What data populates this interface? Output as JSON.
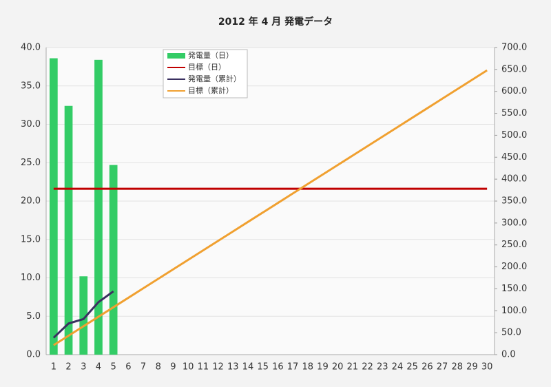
{
  "chart_data": {
    "type": "bar",
    "title": "2012 年 4 月 発電データ",
    "categories": [
      1,
      2,
      3,
      4,
      5,
      6,
      7,
      8,
      9,
      10,
      11,
      12,
      13,
      14,
      15,
      16,
      17,
      18,
      19,
      20,
      21,
      22,
      23,
      24,
      25,
      26,
      27,
      28,
      29,
      30
    ],
    "ylim": [
      0,
      40
    ],
    "yticks": [
      {
        "value": 0,
        "label": "0.0"
      },
      {
        "value": 5,
        "label": "5.0"
      },
      {
        "value": 10,
        "label": "10.0"
      },
      {
        "value": 15,
        "label": "15.0"
      },
      {
        "value": 20,
        "label": "20.0"
      },
      {
        "value": 25,
        "label": "25.0"
      },
      {
        "value": 30,
        "label": "30.0"
      },
      {
        "value": 35,
        "label": "35.0"
      },
      {
        "value": 40,
        "label": "40.0"
      }
    ],
    "y2lim": [
      0,
      700
    ],
    "y2ticks": [
      {
        "value": 0,
        "label": "0.0"
      },
      {
        "value": 50,
        "label": "50.0"
      },
      {
        "value": 100,
        "label": "100.0"
      },
      {
        "value": 150,
        "label": "150.0"
      },
      {
        "value": 200,
        "label": "200.0"
      },
      {
        "value": 250,
        "label": "250.0"
      },
      {
        "value": 300,
        "label": "300.0"
      },
      {
        "value": 350,
        "label": "350.0"
      },
      {
        "value": 400,
        "label": "400.0"
      },
      {
        "value": 450,
        "label": "450.0"
      },
      {
        "value": 500,
        "label": "500.0"
      },
      {
        "value": 550,
        "label": "550.0"
      },
      {
        "value": 600,
        "label": "600.0"
      },
      {
        "value": 650,
        "label": "650.0"
      },
      {
        "value": 700,
        "label": "700.0"
      }
    ],
    "grid": true,
    "legend": "top",
    "series": [
      {
        "name": "発電量（日）",
        "type": "bar",
        "color": "#33cc66",
        "values": [
          38.6,
          32.4,
          10.2,
          38.4,
          24.7,
          null,
          null,
          null,
          null,
          null,
          null,
          null,
          null,
          null,
          null,
          null,
          null,
          null,
          null,
          null,
          null,
          null,
          null,
          null,
          null,
          null,
          null,
          null,
          null,
          null
        ]
      },
      {
        "name": "目標（日）",
        "type": "line",
        "color": "#c00000",
        "values": [
          21.6,
          21.6,
          21.6,
          21.6,
          21.6,
          21.6,
          21.6,
          21.6,
          21.6,
          21.6,
          21.6,
          21.6,
          21.6,
          21.6,
          21.6,
          21.6,
          21.6,
          21.6,
          21.6,
          21.6,
          21.6,
          21.6,
          21.6,
          21.6,
          21.6,
          21.6,
          21.6,
          21.6,
          21.6,
          21.6
        ]
      },
      {
        "name": "発電量（累計）",
        "type": "line",
        "axis": "y2",
        "color": "#3a3060",
        "values": [
          38.6,
          71.0,
          81.2,
          119.6,
          144.3,
          null,
          null,
          null,
          null,
          null,
          null,
          null,
          null,
          null,
          null,
          null,
          null,
          null,
          null,
          null,
          null,
          null,
          null,
          null,
          null,
          null,
          null,
          null,
          null,
          null
        ]
      },
      {
        "name": "目標（累計）",
        "type": "line",
        "axis": "y2",
        "color": "#f0a030",
        "values": [
          21.6,
          43.2,
          64.8,
          86.4,
          108,
          129.6,
          151.2,
          172.8,
          194.4,
          216,
          237.6,
          259.2,
          280.8,
          302.4,
          324,
          345.6,
          367.2,
          388.8,
          410.4,
          432,
          453.6,
          475.2,
          496.8,
          518.4,
          540,
          561.6,
          583.2,
          604.8,
          626.4,
          648
        ]
      }
    ]
  }
}
